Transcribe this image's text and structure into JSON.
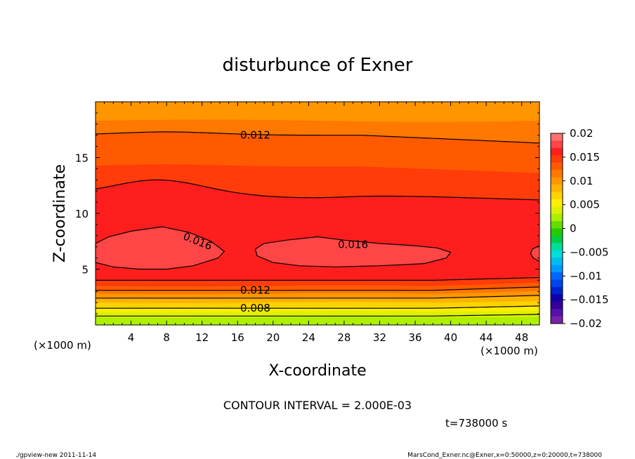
{
  "chart_data": {
    "type": "contour",
    "title": "disturbunce of Exner",
    "xlabel": "X-coordinate",
    "ylabel": "Z-coordinate",
    "x_unit": "(×1000 m)",
    "y_unit": "(×1000 m)",
    "xlim": [
      0,
      50
    ],
    "ylim": [
      0,
      20
    ],
    "x_ticks": [
      4,
      8,
      12,
      16,
      20,
      24,
      28,
      32,
      36,
      40,
      44,
      48
    ],
    "y_ticks": [
      5,
      10,
      15
    ],
    "contour_interval_text": "CONTOUR INTERVAL = 2.000E-03",
    "time_text": "t=738000 s",
    "contour_labels": [
      {
        "text": "0.012",
        "x": 18,
        "z": 17.0
      },
      {
        "text": "0.016",
        "x": 11.5,
        "z": 7.5
      },
      {
        "text": "0.016",
        "x": 29,
        "z": 7.2
      },
      {
        "text": "0.012",
        "x": 18,
        "z": 3.1
      },
      {
        "text": "0.008",
        "x": 18,
        "z": 1.5
      }
    ],
    "colorbar": {
      "ticks": [
        "0.02",
        "0.015",
        "0.01",
        "0.005",
        "0",
        "−0.005",
        "−0.01",
        "−0.015",
        "−0.02"
      ],
      "levels": [
        0.02,
        0.015,
        0.01,
        0.005,
        0,
        -0.005,
        -0.01,
        -0.015,
        -0.02
      ],
      "colors_top_to_bottom": [
        "#ff7272",
        "#ff4646",
        "#ff1e1e",
        "#ff3c0a",
        "#ff5a00",
        "#ff7800",
        "#ff9600",
        "#ffb400",
        "#ffd200",
        "#ffee00",
        "#ddf000",
        "#aaee00",
        "#66dd00",
        "#22cc00",
        "#00cc44",
        "#00dd99",
        "#00dddd",
        "#00bbee",
        "#0099ff",
        "#0066ff",
        "#0044ee",
        "#0022cc",
        "#1100aa",
        "#330099",
        "#5511aa",
        "#7722aa"
      ]
    },
    "field_bands_bottom_to_top": [
      {
        "color": "#aef000",
        "z_top": 0.7
      },
      {
        "color": "#dff000",
        "z_top": 1.2
      },
      {
        "color": "#ffee00",
        "z_top": 1.6
      },
      {
        "color": "#ffd200",
        "z_top": 2.0
      },
      {
        "color": "#ffb400",
        "z_top": 2.4
      },
      {
        "color": "#ff9600",
        "z_top": 2.8
      },
      {
        "color": "#ff7800",
        "z_top": 3.1
      },
      {
        "color": "#ff5a00",
        "z_top": 3.5
      },
      {
        "color": "#ff3c0a",
        "z_top": 4.0
      },
      {
        "color": "#ff1e1e",
        "z_top": 5.0
      }
    ],
    "field_colors": {
      "inner_high": "#ff4646",
      "core": "#ff1e1e",
      "upper": "#ff3c0a",
      "upper2": "#ff5a00",
      "top": "#ff7800",
      "topmost": "#ff9600"
    }
  },
  "footer": {
    "left": "./gpview-new 2011-11-14",
    "right": "MarsCond_Exner.nc@Exner,x=0:50000,z=0:20000,t=738000"
  }
}
